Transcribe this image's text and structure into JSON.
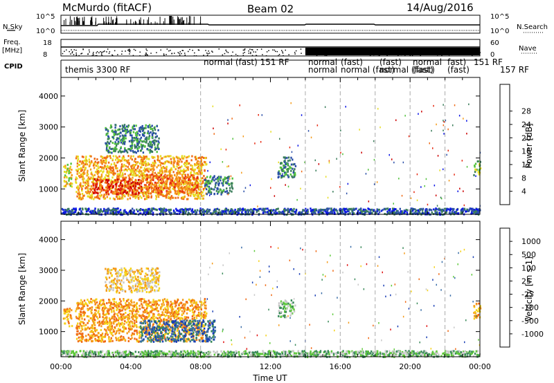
{
  "header": {
    "station": "McMurdo (fitACF)",
    "beam": "Beam 02",
    "date": "14/Aug/2016"
  },
  "side_labels": {
    "nsky": "N.Sky",
    "nsearch": "N.Search",
    "freq_top": "Freq.",
    "freq_unit": "[MHz]",
    "nave": "Nave",
    "cpid": "CPID",
    "nsky_ticks": [
      "10^5",
      "10^0"
    ],
    "nsearch_ticks": [
      "10^5",
      "10^0"
    ],
    "freq_ticks": [
      "18",
      "8"
    ],
    "nave_ticks": [
      "60",
      "0"
    ]
  },
  "cpid_segments": [
    {
      "label": "themis 3300 RF"
    },
    {
      "label": "normal (fast) 151 RF"
    },
    {
      "label": "normal"
    },
    {
      "label": "normal"
    },
    {
      "label": "(fast)"
    },
    {
      "label": "normal (fast)"
    },
    {
      "label": "(fast)"
    },
    {
      "label": "normal (fast)"
    },
    {
      "label": "normal"
    },
    {
      "label": "(fast)"
    },
    {
      "label": "fast)"
    },
    {
      "label": "151 RF"
    },
    {
      "label": "(fast)"
    },
    {
      "label": "157 RF"
    }
  ],
  "x_axis": {
    "title": "Time UT",
    "ticks": [
      "00:00",
      "04:00",
      "08:00",
      "12:00",
      "16:00",
      "20:00",
      "00:00"
    ]
  },
  "chart_data": [
    {
      "type": "heatmap",
      "panel": "power",
      "ylabel": "Slant Range [km]",
      "y_ticks": [
        1000,
        2000,
        3000,
        4000
      ],
      "ylim": [
        180,
        4600
      ],
      "xlim_hours": [
        0,
        24
      ],
      "cpid_change_hours": [
        8,
        14,
        16,
        18,
        20,
        22
      ],
      "colorbar": {
        "label": "Power [dB]",
        "ticks": [
          "4",
          "8",
          "12",
          "16",
          "20",
          "24",
          "28"
        ],
        "colors": [
          "#0a14e6",
          "#2b4fa8",
          "#3a7d5a",
          "#52c23c",
          "#e6dd21",
          "#f59b1a",
          "#f06a15",
          "#e62a12",
          "#cc0000"
        ]
      },
      "regions": [
        {
          "t0": 0.1,
          "t1": 0.6,
          "r0": 1100,
          "r1": 1850,
          "level": 4
        },
        {
          "t0": 0.8,
          "t1": 8.3,
          "r0": 700,
          "r1": 2100,
          "level": 5
        },
        {
          "t0": 1.8,
          "t1": 4.6,
          "r0": 850,
          "r1": 1350,
          "level": 7
        },
        {
          "t0": 4.8,
          "t1": 7.8,
          "r0": 900,
          "r1": 1500,
          "level": 6
        },
        {
          "t0": 2.5,
          "t1": 5.6,
          "r0": 2200,
          "r1": 3100,
          "level": 2
        },
        {
          "t0": 8.2,
          "t1": 9.8,
          "r0": 850,
          "r1": 1450,
          "level": 2
        },
        {
          "t0": 12.4,
          "t1": 13.4,
          "r0": 1400,
          "r1": 2050,
          "level": 2
        },
        {
          "t0": 23.6,
          "t1": 24.0,
          "r0": 1450,
          "r1": 1950,
          "level": 3
        },
        {
          "t0": 0.0,
          "t1": 24.0,
          "r0": 200,
          "r1": 400,
          "level": 1
        }
      ]
    },
    {
      "type": "heatmap",
      "panel": "velocity",
      "ylabel": "Slant Range [km]",
      "y_ticks": [
        1000,
        2000,
        3000,
        4000
      ],
      "ylim": [
        180,
        4600
      ],
      "xlim_hours": [
        0,
        24
      ],
      "cpid_change_hours": [
        8,
        14,
        16,
        18,
        20,
        22
      ],
      "colorbar": {
        "label": "Velocity [m s-1]",
        "ticks": [
          "1000",
          "500",
          "100",
          "25",
          "-25",
          "-100",
          "-500",
          "-1000"
        ],
        "colors": [
          "#1a3fb5",
          "#3a6ea8",
          "#3a8a5a",
          "#5ec93a",
          "#c8c8c8",
          "#f5d21a",
          "#f59b1a",
          "#f06a15",
          "#e01010"
        ]
      },
      "regions": [
        {
          "t0": 0.1,
          "t1": 0.6,
          "r0": 1200,
          "r1": 1800,
          "level": 6
        },
        {
          "t0": 0.8,
          "t1": 8.3,
          "r0": 700,
          "r1": 2100,
          "level": 6
        },
        {
          "t0": 4.5,
          "t1": 8.8,
          "r0": 700,
          "r1": 1400,
          "level": 1
        },
        {
          "t0": 2.5,
          "t1": 5.6,
          "r0": 2300,
          "r1": 3100,
          "level": 5
        },
        {
          "t0": 12.4,
          "t1": 13.4,
          "r0": 1500,
          "r1": 2050,
          "level": 3
        },
        {
          "t0": 23.6,
          "t1": 24.0,
          "r0": 1400,
          "r1": 1950,
          "level": 6
        },
        {
          "t0": 0.0,
          "t1": 24.0,
          "r0": 200,
          "r1": 400,
          "level": 3
        }
      ]
    }
  ]
}
